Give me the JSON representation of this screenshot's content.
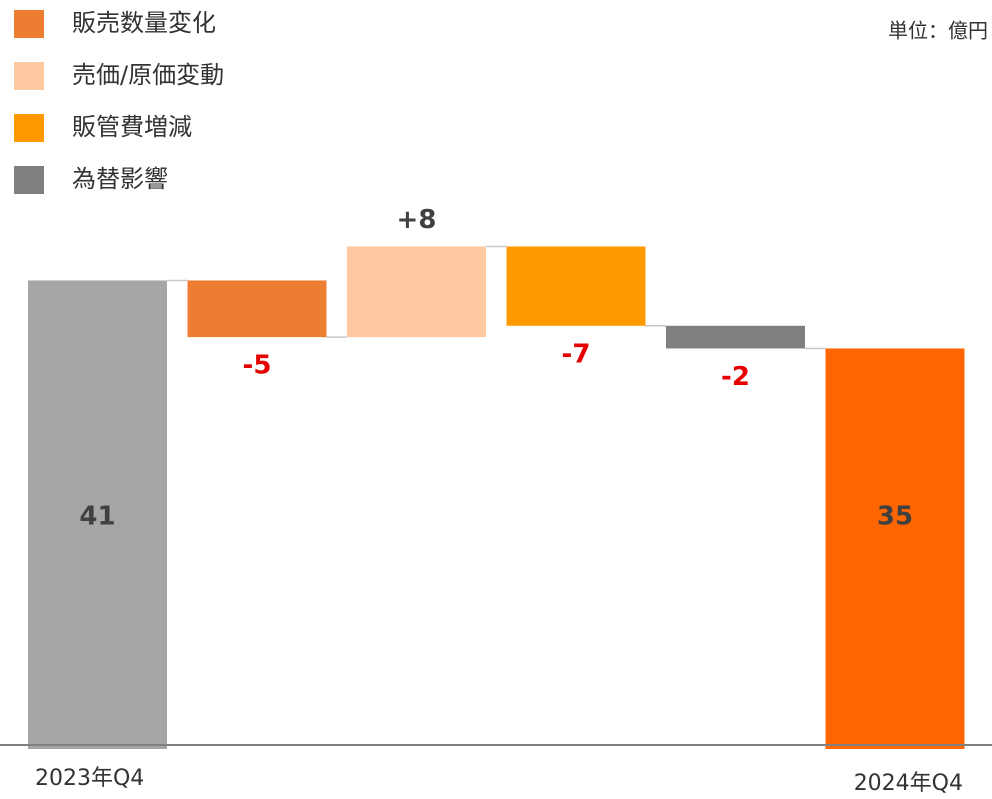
{
  "chart_data": {
    "type": "waterfall",
    "unit_label": "単位：億円",
    "legend": [
      {
        "name": "販売数量変化",
        "color": "#ed7d31"
      },
      {
        "name": "売価/原価変動",
        "color": "#ffc89e"
      },
      {
        "name": "販管費増減",
        "color": "#ff9900"
      },
      {
        "name": "為替影響",
        "color": "#7f7f7f"
      }
    ],
    "categories": [
      "2023年Q4",
      null,
      null,
      null,
      null,
      "2024年Q4"
    ],
    "values": [
      41,
      -5,
      8,
      -7,
      -2,
      35
    ],
    "value_labels": [
      "41",
      "-5",
      "+8",
      "-7",
      "-2",
      "35"
    ],
    "totals": [
      true,
      false,
      false,
      false,
      false,
      true
    ],
    "colors": [
      "#a6a6a6",
      "#ed7d31",
      "#ffc89e",
      "#ff9900",
      "#7f7f7f",
      "#ff6600"
    ],
    "label_color": "#404040",
    "negative_label_color": "#e60000"
  }
}
